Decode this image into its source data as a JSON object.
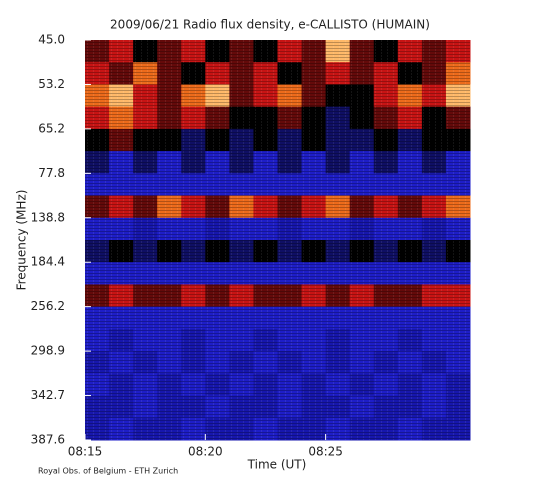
{
  "chart_data": {
    "type": "heatmap",
    "title": "2009/06/21  Radio flux density, e-CALLISTO (HUMAIN)",
    "x_label": "Time (UT)",
    "y_label": "Frequency (MHz)",
    "footer": "Royal Obs. of Belgium - ETH Zurich",
    "x_categories": [
      "08:15",
      null,
      null,
      null,
      null,
      "08:20",
      null,
      null,
      null,
      null,
      "08:25",
      null,
      null,
      null,
      null,
      null
    ],
    "y_labels": [
      "45.0",
      "53.2",
      "65.2",
      "77.8",
      "138.8",
      "184.4",
      "256.2",
      "298.9",
      "342.7",
      "387.6"
    ],
    "z": [
      [
        0.6,
        0.7,
        0.5,
        0.6,
        0.7,
        0.5,
        0.6,
        0.5,
        0.7,
        0.6,
        0.9,
        0.6,
        0.5,
        0.7,
        0.6,
        0.7
      ],
      [
        0.7,
        0.6,
        0.8,
        0.6,
        0.5,
        0.7,
        0.6,
        0.7,
        0.5,
        0.6,
        0.7,
        0.6,
        0.7,
        0.5,
        0.6,
        0.8
      ],
      [
        0.8,
        0.9,
        0.7,
        0.6,
        0.8,
        0.9,
        0.6,
        0.7,
        0.8,
        0.6,
        0.5,
        0.5,
        0.7,
        0.8,
        0.7,
        0.9
      ],
      [
        0.7,
        0.8,
        0.7,
        0.6,
        0.7,
        0.6,
        0.5,
        0.5,
        0.6,
        0.5,
        0.4,
        0.5,
        0.6,
        0.7,
        0.5,
        0.6
      ],
      [
        0.5,
        0.6,
        0.5,
        0.5,
        0.4,
        0.5,
        0.4,
        0.5,
        0.4,
        0.5,
        0.4,
        0.4,
        0.5,
        0.4,
        0.5,
        0.5
      ],
      [
        0.4,
        0.3,
        0.4,
        0.3,
        0.4,
        0.3,
        0.4,
        0.3,
        0.4,
        0.3,
        0.4,
        0.3,
        0.4,
        0.3,
        0.4,
        0.3
      ],
      [
        0.3,
        0.3,
        0.3,
        0.3,
        0.3,
        0.3,
        0.3,
        0.3,
        0.3,
        0.3,
        0.3,
        0.3,
        0.3,
        0.3,
        0.3,
        0.3
      ],
      [
        0.6,
        0.7,
        0.6,
        0.8,
        0.7,
        0.6,
        0.8,
        0.7,
        0.6,
        0.7,
        0.8,
        0.6,
        0.7,
        0.6,
        0.7,
        0.8
      ],
      [
        0.3,
        0.3,
        0.2,
        0.3,
        0.3,
        0.2,
        0.3,
        0.3,
        0.2,
        0.3,
        0.3,
        0.2,
        0.3,
        0.3,
        0.2,
        0.3
      ],
      [
        0.4,
        0.5,
        0.4,
        0.5,
        0.4,
        0.5,
        0.4,
        0.5,
        0.4,
        0.5,
        0.4,
        0.5,
        0.4,
        0.5,
        0.4,
        0.5
      ],
      [
        0.3,
        0.3,
        0.3,
        0.3,
        0.3,
        0.3,
        0.3,
        0.3,
        0.3,
        0.3,
        0.3,
        0.3,
        0.3,
        0.3,
        0.3,
        0.3
      ],
      [
        0.6,
        0.7,
        0.6,
        0.6,
        0.7,
        0.6,
        0.7,
        0.6,
        0.6,
        0.7,
        0.6,
        0.7,
        0.6,
        0.6,
        0.7,
        0.7
      ],
      [
        0.3,
        0.3,
        0.3,
        0.3,
        0.3,
        0.3,
        0.3,
        0.3,
        0.3,
        0.3,
        0.3,
        0.3,
        0.3,
        0.3,
        0.3,
        0.3
      ],
      [
        0.3,
        0.2,
        0.3,
        0.3,
        0.2,
        0.3,
        0.3,
        0.2,
        0.3,
        0.3,
        0.2,
        0.3,
        0.3,
        0.2,
        0.3,
        0.3
      ],
      [
        0.2,
        0.3,
        0.2,
        0.3,
        0.2,
        0.3,
        0.2,
        0.3,
        0.2,
        0.3,
        0.2,
        0.3,
        0.2,
        0.3,
        0.2,
        0.3
      ],
      [
        0.3,
        0.2,
        0.3,
        0.2,
        0.3,
        0.2,
        0.3,
        0.2,
        0.3,
        0.2,
        0.3,
        0.2,
        0.3,
        0.2,
        0.3,
        0.2
      ],
      [
        0.2,
        0.2,
        0.3,
        0.2,
        0.2,
        0.3,
        0.2,
        0.2,
        0.3,
        0.2,
        0.2,
        0.3,
        0.2,
        0.2,
        0.3,
        0.2
      ],
      [
        0.2,
        0.3,
        0.2,
        0.2,
        0.3,
        0.2,
        0.2,
        0.3,
        0.2,
        0.2,
        0.3,
        0.2,
        0.2,
        0.3,
        0.2,
        0.2
      ]
    ]
  }
}
